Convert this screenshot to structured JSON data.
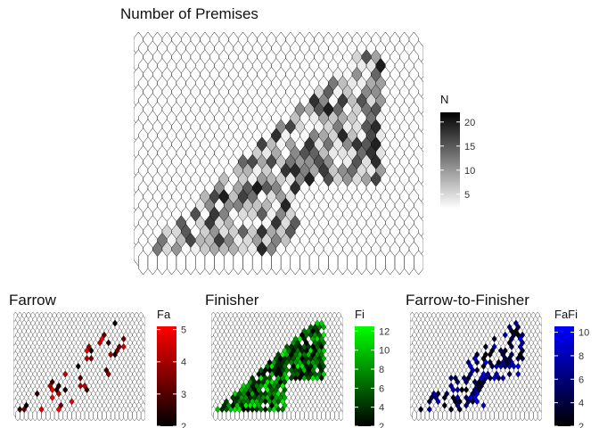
{
  "panels": [
    {
      "id": "premises",
      "title": "Number of Premises",
      "legend": {
        "title": "N",
        "ticks": [
          5,
          10,
          15,
          20
        ],
        "min": 2,
        "max": 22,
        "low_color": "#ffffff",
        "high_color": "#000000"
      },
      "shape_seed": 1
    },
    {
      "id": "farrow",
      "title": "Farrow",
      "legend": {
        "title": "Fa",
        "ticks": [
          2,
          3,
          4,
          5
        ],
        "min": 2,
        "max": 5.1,
        "low_color": "#000000",
        "high_color": "#ff0000"
      },
      "shape_seed": 2
    },
    {
      "id": "finisher",
      "title": "Finisher",
      "legend": {
        "title": "Fi",
        "ticks": [
          2,
          4,
          6,
          8,
          10,
          12
        ],
        "min": 2,
        "max": 12.5,
        "low_color": "#000000",
        "high_color": "#00ff00"
      },
      "shape_seed": 3
    },
    {
      "id": "farrow-to-finisher",
      "title": "Farrow-to-Finisher",
      "legend": {
        "title": "FaFi",
        "ticks": [
          2,
          4,
          6,
          8,
          10
        ],
        "min": 2,
        "max": 10.5,
        "low_color": "#000000",
        "high_color": "#0000ff"
      },
      "shape_seed": 4
    }
  ],
  "colors": {
    "empty_hex_fill": "#ffffff",
    "hex_outline": "#000000"
  }
}
